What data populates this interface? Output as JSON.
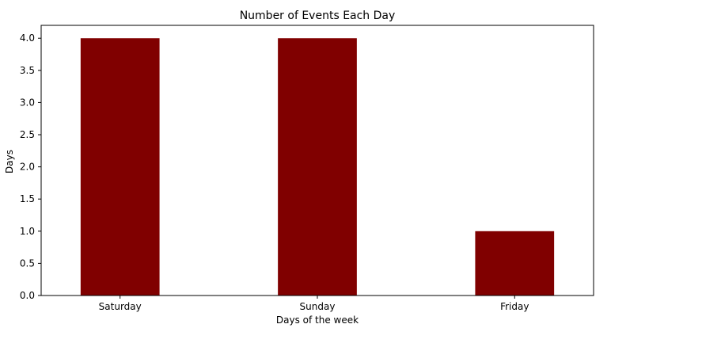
{
  "chart_data": {
    "type": "bar",
    "title": "Number of Events Each Day",
    "xlabel": "Days of the week",
    "ylabel": "Days",
    "categories": [
      "Saturday",
      "Sunday",
      "Friday"
    ],
    "values": [
      4,
      4,
      1
    ],
    "ylim": [
      0,
      4.2
    ],
    "yticks": [
      "0.0",
      "0.5",
      "1.0",
      "1.5",
      "2.0",
      "2.5",
      "3.0",
      "3.5",
      "4.0"
    ],
    "bar_color": "#800000",
    "grid": false,
    "legend": "none"
  }
}
